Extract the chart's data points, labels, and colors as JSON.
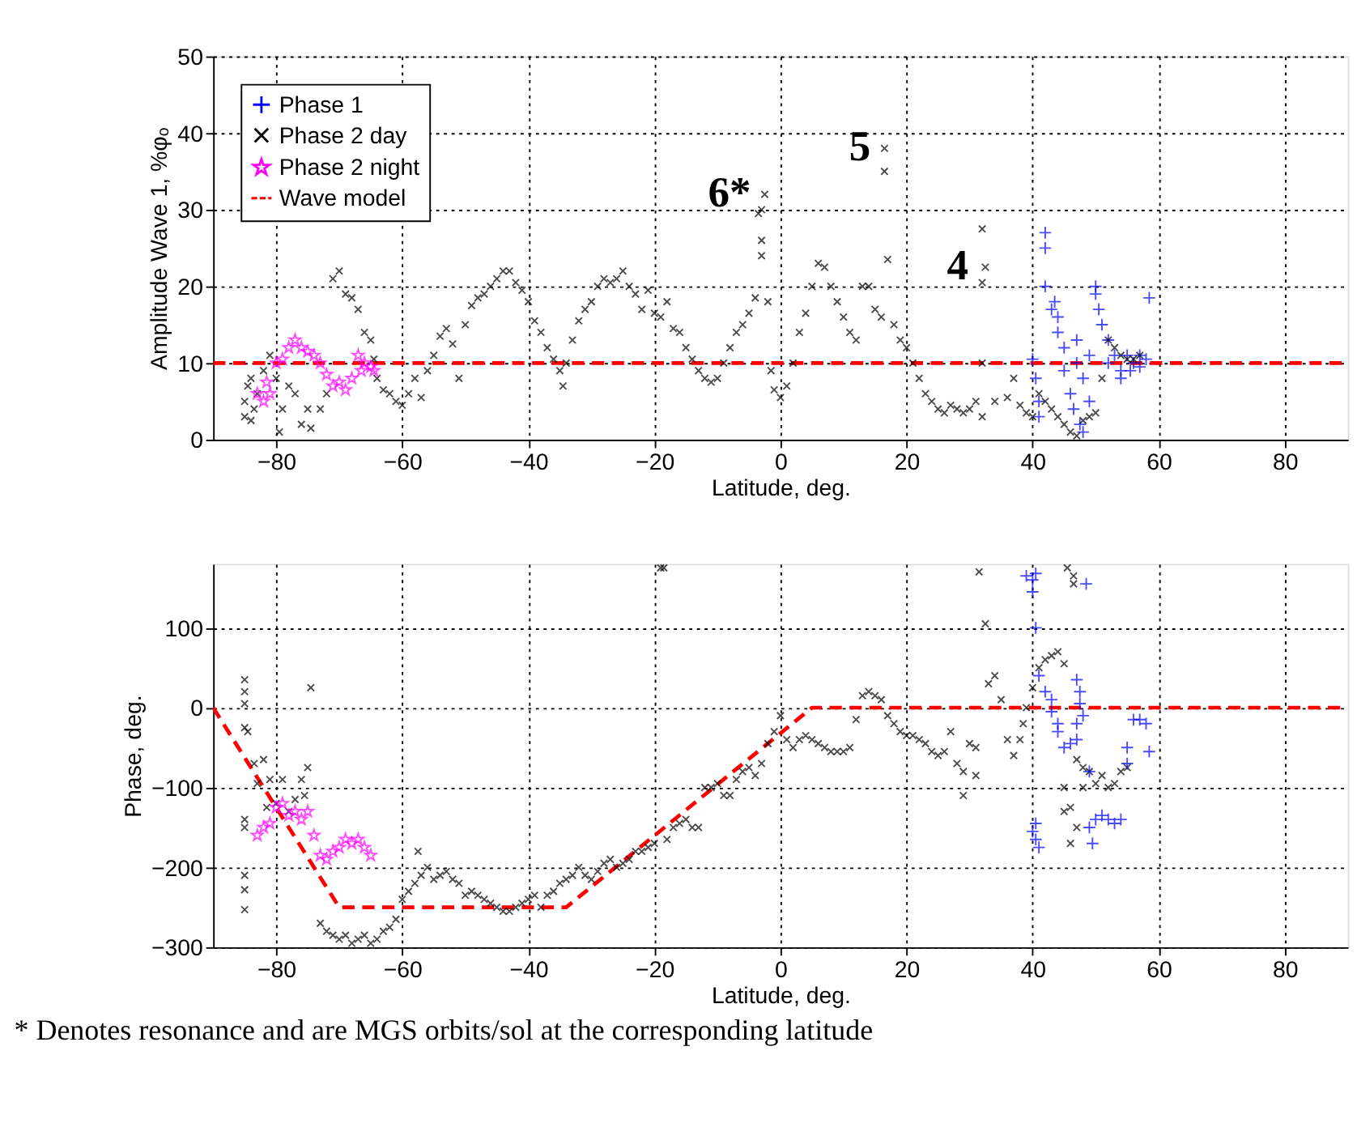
{
  "chart_data": [
    {
      "type": "scatter",
      "xlabel": "Latitude, deg.",
      "ylabel": "Amplitude Wave 1, %φₒ",
      "xlim": [
        -90,
        90
      ],
      "xticks": [
        -80,
        -60,
        -40,
        -20,
        0,
        20,
        40,
        60,
        80
      ],
      "ylim": [
        0,
        50
      ],
      "yticks": [
        0,
        10,
        20,
        30,
        40,
        50
      ],
      "grid": true,
      "legend": "top left",
      "series": [
        {
          "name": "Phase 1",
          "color": "#0000ff",
          "marker": "plus",
          "x": [
            40,
            40.5,
            41,
            41,
            42,
            42,
            42,
            43,
            43.5,
            44,
            44,
            45,
            45,
            46,
            46.5,
            47,
            47,
            47.5,
            48,
            48,
            49,
            49,
            50,
            50,
            50.5,
            51,
            52,
            52,
            53,
            54,
            54,
            55,
            56,
            57,
            58,
            58.5,
            57,
            55.5
          ],
          "values": [
            10.5,
            8,
            5,
            3,
            27,
            25,
            20,
            17,
            18,
            16,
            14,
            12,
            9,
            6,
            4,
            13,
            10,
            2,
            1,
            8,
            5,
            11,
            20,
            19,
            17,
            15,
            13,
            10,
            11,
            9,
            8,
            11,
            10,
            11,
            10.5,
            18.5,
            9.5,
            9
          ]
        },
        {
          "name": "Phase 2 day",
          "color": "#000000",
          "marker": "cross",
          "x": [
            -85,
            -85,
            -84.5,
            -84,
            -84,
            -83.5,
            -83,
            -82,
            -81,
            -80,
            -79.5,
            -79,
            -78,
            -77,
            -76,
            -75,
            -74.5,
            -73,
            -72,
            -71,
            -70,
            -69,
            -68,
            -67,
            -66,
            -65,
            -64.5,
            -64,
            -63,
            -62,
            -61,
            -60,
            -59,
            -58,
            -57,
            -56,
            -55,
            -54,
            -53,
            -52,
            -51,
            -50,
            -49,
            -48,
            -47,
            -46,
            -45,
            -44,
            -43,
            -42,
            -41,
            -40,
            -39,
            -38,
            -37,
            -36,
            -35,
            -34.5,
            -34,
            -33,
            -32,
            -31,
            -30,
            -29,
            -28,
            -27,
            -26,
            -25,
            -24,
            -23,
            -22,
            -21,
            -20,
            -19,
            -18,
            -17,
            -16,
            -15,
            -14,
            -13,
            -12,
            -11,
            -10,
            -9,
            -8,
            -7,
            -6,
            -5,
            -4,
            -3,
            -3,
            -3.5,
            -3,
            -2.5,
            -2,
            -1.5,
            -1,
            0,
            1,
            2,
            3,
            4,
            5,
            6,
            7,
            8,
            9,
            10,
            11,
            12,
            13,
            14,
            15,
            16,
            16.5,
            16.5,
            17,
            18,
            19,
            20,
            21,
            22,
            23,
            24,
            25,
            26,
            27,
            28,
            29,
            30,
            31,
            32,
            32,
            32,
            32.5,
            32,
            34,
            36,
            37,
            38,
            39,
            40,
            41,
            42,
            43,
            44,
            45,
            46,
            47,
            48,
            49,
            50,
            51,
            52,
            53,
            54,
            55,
            56,
            57
          ],
          "values": [
            3,
            5,
            7,
            2.5,
            8,
            4,
            6,
            9,
            11,
            8,
            1,
            4,
            7,
            6,
            2,
            4,
            1.5,
            4,
            6,
            21,
            22,
            19,
            18.5,
            17,
            14,
            13,
            10.5,
            8,
            6.5,
            6,
            5,
            4.5,
            6,
            8,
            5.5,
            9,
            11,
            13.5,
            14.5,
            12.5,
            8,
            15,
            17.5,
            18.5,
            19,
            20,
            21,
            22,
            22,
            20.5,
            19.5,
            18,
            15.5,
            14,
            12,
            10.5,
            9,
            7,
            10,
            13,
            15.5,
            17,
            18,
            20,
            21,
            20.5,
            21,
            22,
            20,
            19,
            17,
            19.5,
            16.5,
            16,
            18,
            14.5,
            14,
            12,
            10.5,
            9,
            8,
            7.5,
            8,
            10,
            12,
            14,
            15,
            16.5,
            18.5,
            26,
            24,
            29.5,
            30,
            32,
            18,
            9,
            6.5,
            5.5,
            7,
            10,
            14,
            16.5,
            20,
            23,
            22.5,
            20,
            18,
            16,
            14,
            13,
            20,
            20,
            17,
            16,
            35,
            38,
            23.5,
            15,
            13,
            12,
            10,
            8,
            6,
            5,
            4,
            3.5,
            4.5,
            4,
            3.5,
            4,
            5,
            3,
            10,
            20.5,
            22.5,
            27.5,
            5,
            5.5,
            8,
            4.5,
            3.5,
            3,
            6,
            5,
            4,
            3,
            2,
            1,
            0.5,
            2.5,
            3,
            3.5,
            8,
            13,
            12,
            11,
            10.5,
            10.5,
            11
          ]
        },
        {
          "name": "Phase 2 night",
          "color": "#ff00ff",
          "marker": "star",
          "x": [
            -83,
            -82,
            -81.5,
            -81,
            -80,
            -79,
            -78,
            -77,
            -76,
            -75,
            -74,
            -73,
            -72,
            -71,
            -70,
            -69,
            -68,
            -67,
            -66.5,
            -66,
            -65,
            -64.5
          ],
          "values": [
            6,
            5,
            7.5,
            6,
            10,
            10.5,
            12,
            13,
            12,
            11.5,
            11,
            10,
            8.5,
            7,
            7.5,
            6.5,
            8,
            11,
            9,
            10,
            9.5,
            9
          ]
        },
        {
          "name": "Wave model",
          "type": "line",
          "color": "#ff0000",
          "line_style": "dashed",
          "x": [
            -90,
            90
          ],
          "values": [
            10,
            10
          ]
        }
      ],
      "annotations": [
        {
          "text": "6*",
          "x": -2.5,
          "y": 32
        },
        {
          "text": "5",
          "x": 16.5,
          "y": 38
        },
        {
          "text": "4",
          "x": 32,
          "y": 22.5
        }
      ]
    },
    {
      "type": "scatter",
      "xlabel": "Latitude, deg.",
      "ylabel": "Phase, deg.",
      "xlim": [
        -90,
        90
      ],
      "xticks": [
        -80,
        -60,
        -40,
        -20,
        0,
        20,
        40,
        60,
        80
      ],
      "ylim": [
        -300,
        180
      ],
      "yticks": [
        -300,
        -200,
        -100,
        0,
        100
      ],
      "grid": true,
      "series": [
        {
          "color": "#000000",
          "marker": "cross",
          "x": [
            -85,
            -85,
            -85,
            -85,
            -84.5,
            -85,
            -85,
            -85,
            -85,
            -85,
            -83.5,
            -83,
            -82,
            -81,
            -81.5,
            -80,
            -79,
            -78,
            -77,
            -76,
            -75.5,
            -75,
            -74.5,
            -73,
            -72,
            -71,
            -70,
            -69,
            -68,
            -67,
            -66,
            -65,
            -64,
            -63,
            -62,
            -61,
            -60,
            -59,
            -58,
            -57.5,
            -57,
            -56,
            -55,
            -54,
            -53,
            -52,
            -51,
            -50,
            -49,
            -48,
            -47,
            -46,
            -45,
            -44,
            -43,
            -42,
            -41,
            -40,
            -39,
            -38,
            -37,
            -36,
            -35,
            -34,
            -33,
            -32,
            -31,
            -30,
            -29,
            -28,
            -27,
            -26,
            -25,
            -24,
            -23,
            -22,
            -21,
            -20,
            -19,
            -18.5,
            -18,
            -17,
            -16,
            -15,
            -14,
            -13,
            -12,
            -11,
            -10,
            -9,
            -8,
            -7,
            -6,
            -5,
            -4,
            -3,
            -2,
            -1,
            0,
            1,
            2,
            3,
            4,
            5,
            6,
            7,
            8,
            9,
            10,
            11,
            12,
            13,
            14,
            15,
            16,
            17,
            18,
            19,
            20,
            21,
            22,
            23,
            24,
            25,
            26,
            27,
            28,
            29,
            29,
            30,
            31,
            31,
            31.5,
            32.5,
            33,
            34,
            35,
            36,
            37,
            38,
            38.5,
            39,
            40,
            41,
            42,
            43,
            44,
            45,
            45,
            45,
            46,
            46,
            47,
            47,
            48,
            48,
            49,
            50,
            51,
            52,
            53,
            54,
            55,
            45.5,
            46.5,
            46.5
          ],
          "values": [
            35,
            20,
            5,
            -25,
            -30,
            -140,
            -150,
            -210,
            -228,
            -253,
            -70,
            -95,
            -65,
            -90,
            -125,
            -120,
            -90,
            -130,
            -115,
            -90,
            -110,
            -75,
            25,
            -270,
            -280,
            -285,
            -290,
            -285,
            -295,
            -290,
            -285,
            -295,
            -290,
            -280,
            -275,
            -265,
            -240,
            -230,
            -220,
            -180,
            -210,
            -200,
            -215,
            -210,
            -205,
            -215,
            -220,
            -235,
            -230,
            -235,
            -240,
            -245,
            -250,
            -255,
            -255,
            -250,
            -245,
            -240,
            -235,
            -250,
            -235,
            -230,
            -220,
            -215,
            -210,
            -200,
            -210,
            -215,
            -205,
            -195,
            -190,
            -200,
            -195,
            -190,
            -180,
            -180,
            -175,
            -170,
            175,
            175,
            -165,
            -150,
            -145,
            -140,
            -150,
            -150,
            -100,
            -100,
            -95,
            -110,
            -110,
            -90,
            -80,
            -75,
            -85,
            -70,
            -45,
            -30,
            -10,
            -40,
            -50,
            -40,
            -35,
            -40,
            -45,
            -50,
            -55,
            -55,
            -55,
            -50,
            -15,
            15,
            20,
            15,
            10,
            -10,
            -20,
            -30,
            -35,
            -35,
            -40,
            -45,
            -55,
            -60,
            -55,
            -30,
            -70,
            -80,
            -110,
            -45,
            -50,
            -85,
            170,
            105,
            30,
            40,
            10,
            -40,
            -60,
            -40,
            -20,
            0,
            25,
            50,
            60,
            65,
            70,
            55,
            -100,
            -130,
            -125,
            -170,
            -150,
            -65,
            -75,
            -100,
            -80,
            -95,
            -85,
            -100,
            -95,
            -80,
            -75,
            175,
            165,
            155
          ]
        },
        {
          "color": "#0000ff",
          "marker": "plus",
          "x": [
            39,
            40,
            40,
            40.5,
            40.5,
            40.5,
            40,
            40.5,
            41,
            41,
            42,
            43,
            43,
            44,
            44,
            45,
            46,
            47,
            47,
            47.5,
            47.5,
            47,
            48,
            48.5,
            49,
            49,
            49.5,
            50,
            51,
            52,
            53,
            54,
            55,
            55,
            56,
            57,
            58,
            58.5
          ],
          "values": [
            165,
            160,
            145,
            168,
            100,
            -145,
            -155,
            -165,
            -175,
            40,
            20,
            10,
            -5,
            -20,
            -30,
            -50,
            -45,
            -40,
            -20,
            5,
            20,
            35,
            -10,
            155,
            -80,
            -150,
            -170,
            -140,
            -135,
            -140,
            -145,
            -140,
            -70,
            -50,
            -15,
            -15,
            -20,
            -55
          ]
        },
        {
          "color": "#ff00ff",
          "marker": "star",
          "x": [
            -83,
            -82,
            -81,
            -80,
            -79,
            -78,
            -77,
            -76,
            -75,
            -74,
            -73,
            -72,
            -71,
            -70,
            -69,
            -68,
            -67,
            -66,
            -65
          ],
          "values": [
            -160,
            -150,
            -145,
            -125,
            -120,
            -135,
            -130,
            -140,
            -130,
            -160,
            -185,
            -190,
            -180,
            -175,
            -165,
            -170,
            -165,
            -175,
            -185
          ]
        },
        {
          "type": "line",
          "color": "#ff0000",
          "line_style": "dashed",
          "x": [
            -90,
            -70,
            -34,
            5,
            90
          ],
          "values": [
            0,
            -250,
            -250,
            0,
            0
          ]
        }
      ],
      "annotations": [
        "* Denotes resonance and are MGS orbits/sol at the corresponding latitude"
      ]
    }
  ]
}
